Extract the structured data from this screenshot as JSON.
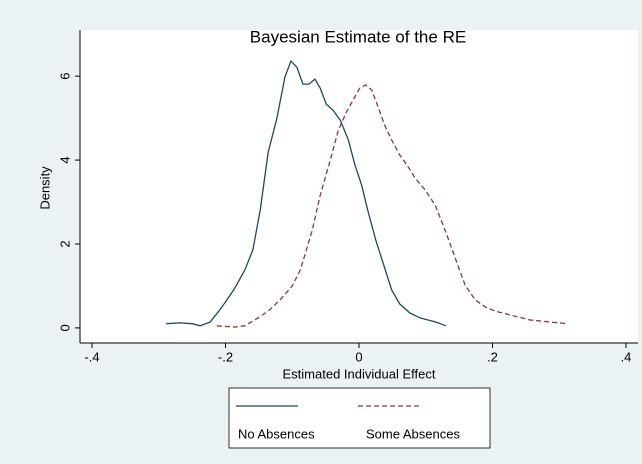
{
  "chart_data": {
    "type": "line",
    "title": "Bayesian Estimate of the RE",
    "xlabel": "Estimated Individual Effect",
    "ylabel": "Density",
    "xlim": [
      -0.418,
      0.418
    ],
    "ylim": [
      -0.36,
      7.1
    ],
    "xticks": [
      {
        "value": -0.4,
        "label": "-.4"
      },
      {
        "value": -0.2,
        "label": "-.2"
      },
      0,
      {
        "value": 0.2,
        "label": ".2"
      },
      {
        "value": 0.4,
        "label": ".4"
      }
    ],
    "yticks": [
      0,
      2,
      4,
      6
    ],
    "series": [
      {
        "name": "No Absences",
        "color": "#1a476f",
        "dash": false,
        "x": [
          -0.289,
          -0.268,
          -0.25,
          -0.238,
          -0.223,
          -0.211,
          -0.199,
          -0.186,
          -0.171,
          -0.159,
          -0.148,
          -0.136,
          -0.123,
          -0.111,
          -0.102,
          -0.093,
          -0.084,
          -0.075,
          -0.066,
          -0.058,
          -0.049,
          -0.039,
          -0.028,
          -0.016,
          -0.006,
          0.004,
          0.013,
          0.025,
          0.037,
          0.049,
          0.061,
          0.076,
          0.091,
          0.115,
          0.13
        ],
        "values": [
          0.1,
          0.12,
          0.1,
          0.05,
          0.14,
          0.38,
          0.64,
          0.95,
          1.38,
          1.86,
          2.81,
          4.19,
          5.0,
          5.98,
          6.36,
          6.21,
          5.81,
          5.81,
          5.93,
          5.71,
          5.33,
          5.19,
          4.95,
          4.48,
          3.88,
          3.4,
          2.81,
          2.1,
          1.5,
          0.9,
          0.57,
          0.36,
          0.24,
          0.14,
          0.05
        ]
      },
      {
        "name": "Some Absences",
        "color": "#90353b",
        "dash": true,
        "x": [
          -0.213,
          -0.186,
          -0.171,
          -0.156,
          -0.136,
          -0.118,
          -0.1,
          -0.088,
          -0.081,
          -0.07,
          -0.058,
          -0.043,
          -0.031,
          -0.019,
          -0.007,
          0.001,
          0.01,
          0.019,
          0.028,
          0.039,
          0.049,
          0.061,
          0.072,
          0.084,
          0.099,
          0.114,
          0.129,
          0.144,
          0.159,
          0.174,
          0.189,
          0.204,
          0.226,
          0.256,
          0.286,
          0.313
        ],
        "values": [
          0.05,
          0.02,
          0.05,
          0.19,
          0.4,
          0.67,
          1.0,
          1.38,
          1.74,
          2.33,
          3.17,
          4.0,
          4.71,
          5.14,
          5.48,
          5.71,
          5.79,
          5.67,
          5.29,
          4.81,
          4.48,
          4.12,
          3.88,
          3.57,
          3.29,
          2.93,
          2.33,
          1.67,
          1.02,
          0.67,
          0.5,
          0.4,
          0.31,
          0.19,
          0.14,
          0.1
        ]
      }
    ]
  }
}
